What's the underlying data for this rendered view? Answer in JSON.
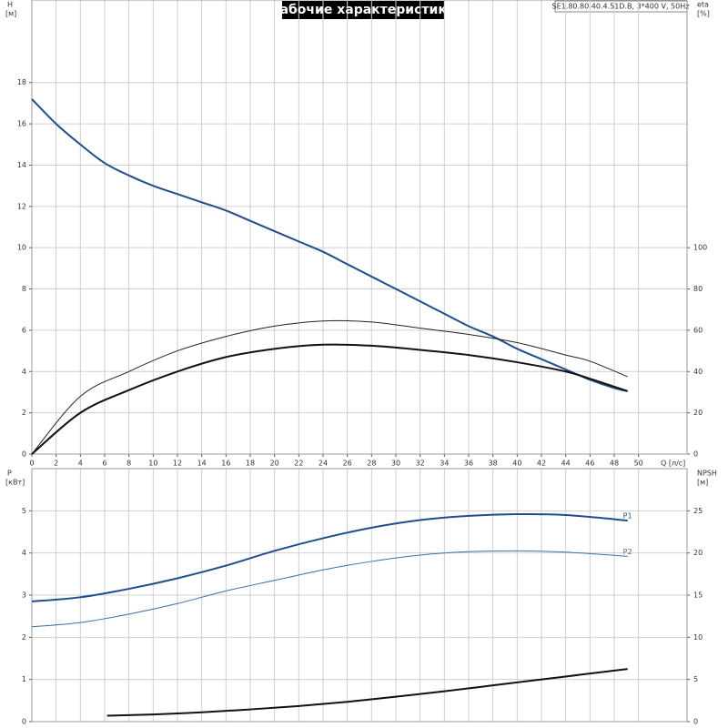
{
  "chart_data": [
    {
      "type": "line",
      "title": "Рабочие характеристики",
      "subtitle": "SE1.80.80.40.4.51D.B, 3*400 V, 50Hz",
      "y_label": "H",
      "y_unit": "[м]",
      "y2_label": "eta",
      "y2_unit": "[%]",
      "x_label": "Q [л/с]",
      "xlim": [
        0,
        54
      ],
      "xticks": [
        0,
        2,
        4,
        6,
        8,
        10,
        12,
        14,
        16,
        18,
        20,
        22,
        24,
        26,
        28,
        30,
        32,
        34,
        36,
        38,
        40,
        42,
        44,
        46,
        48,
        50
      ],
      "ylim": [
        0,
        22
      ],
      "yticks": [
        0,
        2,
        4,
        6,
        8,
        10,
        12,
        14,
        16,
        18
      ],
      "y2lim": [
        0,
        220
      ],
      "y2ticks": [
        0,
        20,
        40,
        60,
        80,
        100
      ],
      "grid": true,
      "series": [
        {
          "color": "#1f4e8c",
          "width": 2,
          "x": [
            0,
            2,
            4,
            6,
            8,
            10,
            12,
            14,
            16,
            18,
            20,
            22,
            24,
            26,
            28,
            30,
            32,
            34,
            36,
            38,
            40,
            42,
            44,
            46,
            48,
            49.1
          ],
          "values": [
            17.2,
            16,
            15,
            14.1,
            13.5,
            13,
            12.6,
            12.2,
            11.8,
            11.3,
            10.8,
            10.3,
            9.8,
            9.2,
            8.6,
            8.0,
            7.4,
            6.8,
            6.2,
            5.7,
            5.1,
            4.6,
            4.1,
            3.6,
            3.2,
            3.05
          ]
        },
        {
          "color": "#222222",
          "width": 1,
          "axis": "y2",
          "x": [
            0,
            4,
            8,
            12,
            16,
            20,
            24,
            28,
            32,
            36,
            40,
            44,
            46,
            49.1
          ],
          "values": [
            0,
            28,
            40,
            50,
            57,
            62,
            64.5,
            64,
            61,
            58,
            54,
            48,
            45,
            37.5
          ]
        },
        {
          "color": "#111111",
          "width": 2,
          "axis": "y2",
          "x": [
            0,
            4,
            8,
            12,
            16,
            20,
            24,
            28,
            32,
            36,
            40,
            44,
            46,
            49.1
          ],
          "values": [
            0,
            20,
            31,
            40,
            47,
            51,
            53,
            52.5,
            50.5,
            48,
            44.5,
            40,
            36.5,
            30.5
          ]
        }
      ]
    },
    {
      "type": "line",
      "y_label": "P",
      "y_unit": "[кВт]",
      "y2_label": "NPSH",
      "y2_unit": "[м]",
      "xlim": [
        0,
        54
      ],
      "ylim": [
        0,
        6
      ],
      "yticks": [
        0,
        1,
        2,
        3,
        4,
        5
      ],
      "y2lim": [
        0,
        30
      ],
      "y2ticks": [
        0,
        5,
        10,
        15,
        20,
        25
      ],
      "grid": true,
      "series": [
        {
          "name": "P1",
          "color": "#1f4e8c",
          "width": 2,
          "x": [
            0,
            4,
            8,
            12,
            16,
            20,
            24,
            28,
            32,
            36,
            40,
            44,
            49.1
          ],
          "values": [
            2.85,
            2.95,
            3.15,
            3.4,
            3.7,
            4.05,
            4.35,
            4.6,
            4.78,
            4.88,
            4.92,
            4.9,
            4.77
          ]
        },
        {
          "name": "P2",
          "color": "#3a6ea5",
          "width": 1,
          "x": [
            0,
            4,
            8,
            12,
            16,
            20,
            24,
            28,
            32,
            36,
            40,
            44,
            49.1
          ],
          "values": [
            2.25,
            2.35,
            2.55,
            2.8,
            3.1,
            3.35,
            3.6,
            3.8,
            3.95,
            4.03,
            4.05,
            4.02,
            3.92
          ]
        },
        {
          "color": "#111111",
          "width": 2,
          "axis": "y2",
          "x": [
            6.2,
            10,
            14,
            18,
            22,
            26,
            30,
            34,
            38,
            42,
            46,
            49.1
          ],
          "values": [
            0.7,
            0.85,
            1.1,
            1.45,
            1.85,
            2.35,
            2.95,
            3.6,
            4.3,
            5.0,
            5.7,
            6.25
          ]
        }
      ]
    }
  ]
}
